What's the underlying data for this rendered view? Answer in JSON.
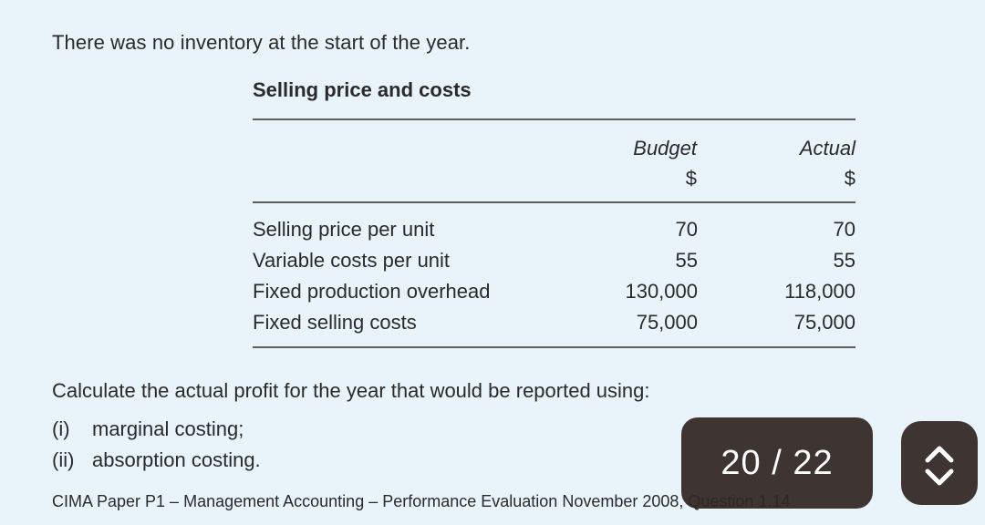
{
  "intro": "There was no inventory at the start of the year.",
  "table": {
    "title": "Selling price and costs",
    "columns": [
      {
        "heading": "Budget",
        "unit": "$"
      },
      {
        "heading": "Actual",
        "unit": "$"
      }
    ],
    "rows": [
      {
        "label": "Selling price per unit",
        "budget": "70",
        "actual": "70"
      },
      {
        "label": "Variable costs per unit",
        "budget": "55",
        "actual": "55"
      },
      {
        "label": "Fixed production overhead",
        "budget": "130,000",
        "actual": "118,000"
      },
      {
        "label": "Fixed selling costs",
        "budget": "75,000",
        "actual": "75,000"
      }
    ]
  },
  "question": {
    "prompt": "Calculate the actual profit for the year that would be reported using:",
    "parts": [
      {
        "num": "(i)",
        "text": "marginal costing;"
      },
      {
        "num": "(ii)",
        "text": "absorption costing."
      }
    ]
  },
  "footer": "CIMA Paper P1 – Management Accounting – Performance Evaluation November 2008, Question 1.14",
  "pager": {
    "label": "20 / 22",
    "current": 20,
    "total": 22
  },
  "nav": {
    "icon": "chevron-up-down-icon"
  },
  "colors": {
    "background": "#e8f4fa",
    "text": "#2a2a2a",
    "overlay": "#302622"
  }
}
